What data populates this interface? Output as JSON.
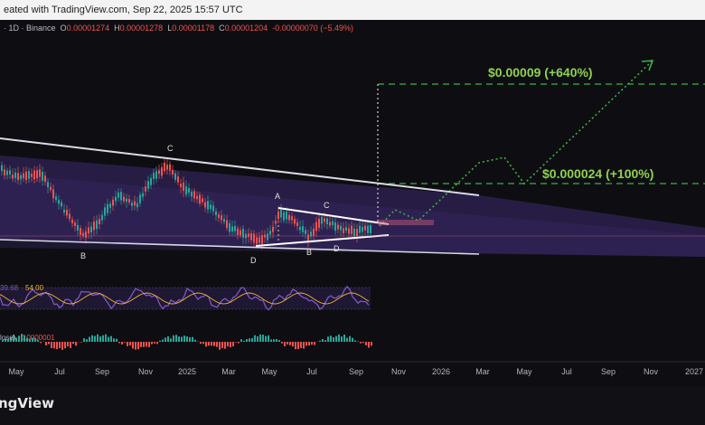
{
  "header": {
    "snapshot_text": "eated with TradingView.com, Sep 22, 2025 15:57 UTC"
  },
  "legend": {
    "symbol_text": "· 1D · Binance",
    "o_label": "O",
    "o_value": "0.00001274",
    "h_label": "H",
    "h_value": "0.00001278",
    "l_label": "L",
    "l_value": "0.00001178",
    "c_label": "C",
    "c_value": "0.00001204",
    "change": "-0.00000070 (−5.49%)"
  },
  "footer": {
    "brand": "ngView"
  },
  "colors": {
    "background": "#0e0e12",
    "band_fill": "#2a1f4a",
    "channel_line": "#d9d9e6",
    "target_green": "#3fae49",
    "label_green": "#8fd14f",
    "rsi_line": "#7e57c2",
    "rsi_ma": "#f0b429",
    "hist_up": "#26a69a",
    "hist_down": "#ef5350",
    "axis_text": "#b2b5be"
  },
  "chart_data": {
    "type": "line",
    "title": "",
    "x_axis_ticks": [
      "May",
      "Jul",
      "Sep",
      "Nov",
      "2025",
      "Mar",
      "May",
      "Jul",
      "Sep",
      "Nov",
      "2026",
      "Mar",
      "May",
      "Jul",
      "Sep",
      "Nov",
      "2027"
    ],
    "pattern_labels": [
      "C",
      "B",
      "A",
      "C",
      "B",
      "D",
      "D"
    ],
    "targets": [
      {
        "label": "$0.00009 (+640%)",
        "price": 9e-05
      },
      {
        "label": "$0.000024 (+100%)",
        "price": 2.4e-05
      }
    ],
    "projection_path": "zigzag breakout toward $0.00009",
    "indicators": {
      "rsi": {
        "value_label": "39.68",
        "ma_label": "54.00"
      },
      "macd": {
        "histogram_label": "lose)",
        "value_label": "-0.0000001"
      }
    }
  }
}
